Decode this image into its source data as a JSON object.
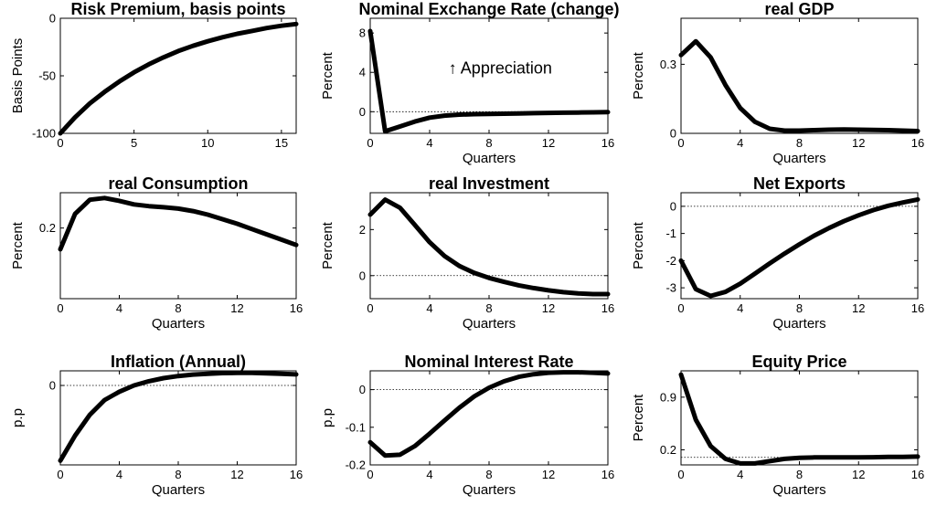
{
  "figure": {
    "background": "#ffffff",
    "line_color": "#000000"
  },
  "chart_data": [
    {
      "type": "line",
      "title": "Risk Premium, basis points",
      "xlabel": "",
      "ylabel": "Basis Points",
      "xlim": [
        0,
        16
      ],
      "ylim": [
        -100,
        0
      ],
      "xticks": [
        0,
        5,
        10,
        15
      ],
      "yticks": [
        -100,
        -50,
        0
      ],
      "zero_line": false,
      "annotation": "",
      "x": [
        0,
        1,
        2,
        3,
        4,
        5,
        6,
        7,
        8,
        9,
        10,
        11,
        12,
        13,
        14,
        15,
        16
      ],
      "y": [
        -100,
        -86,
        -74,
        -64,
        -55,
        -47,
        -40,
        -34,
        -28.5,
        -24,
        -20,
        -16.5,
        -13.5,
        -11,
        -8.5,
        -6.5,
        -5
      ]
    },
    {
      "type": "line",
      "title": "Nominal Exchange Rate (change)",
      "xlabel": "Quarters",
      "ylabel": "Percent",
      "xlim": [
        0,
        16
      ],
      "ylim": [
        -2.2,
        9.5
      ],
      "xticks": [
        0,
        4,
        8,
        12,
        16
      ],
      "yticks": [
        0,
        4,
        8
      ],
      "zero_line": true,
      "annotation": "↑ Appreciation",
      "x": [
        0,
        1,
        2,
        3,
        4,
        5,
        6,
        7,
        8,
        9,
        10,
        11,
        12,
        13,
        14,
        15,
        16
      ],
      "y": [
        8.2,
        -2.0,
        -1.5,
        -1.0,
        -0.6,
        -0.4,
        -0.3,
        -0.25,
        -0.22,
        -0.2,
        -0.18,
        -0.15,
        -0.12,
        -0.1,
        -0.08,
        -0.06,
        -0.05
      ]
    },
    {
      "type": "line",
      "title": "real GDP",
      "xlabel": "Quarters",
      "ylabel": "Percent",
      "xlim": [
        0,
        16
      ],
      "ylim": [
        0,
        0.5
      ],
      "xticks": [
        0,
        4,
        8,
        12,
        16
      ],
      "yticks": [
        0,
        0.3
      ],
      "zero_line": false,
      "annotation": "",
      "x": [
        0,
        1,
        2,
        3,
        4,
        5,
        6,
        7,
        8,
        9,
        10,
        11,
        12,
        13,
        14,
        15,
        16
      ],
      "y": [
        0.34,
        0.4,
        0.33,
        0.21,
        0.11,
        0.05,
        0.02,
        0.012,
        0.012,
        0.014,
        0.016,
        0.017,
        0.016,
        0.015,
        0.014,
        0.012,
        0.01
      ]
    },
    {
      "type": "line",
      "title": "real Consumption",
      "xlabel": "Quarters",
      "ylabel": "Percent",
      "xlim": [
        0,
        16
      ],
      "ylim": [
        0,
        0.3
      ],
      "xticks": [
        0,
        4,
        8,
        12,
        16
      ],
      "yticks": [
        0.2
      ],
      "zero_line": false,
      "annotation": "",
      "x": [
        0,
        1,
        2,
        3,
        4,
        5,
        6,
        7,
        8,
        9,
        10,
        11,
        12,
        13,
        14,
        15,
        16
      ],
      "y": [
        0.14,
        0.24,
        0.28,
        0.285,
        0.277,
        0.267,
        0.262,
        0.259,
        0.255,
        0.248,
        0.238,
        0.225,
        0.212,
        0.197,
        0.182,
        0.167,
        0.152
      ]
    },
    {
      "type": "line",
      "title": "real Investment",
      "xlabel": "Quarters",
      "ylabel": "Percent",
      "xlim": [
        0,
        16
      ],
      "ylim": [
        -1.0,
        3.6
      ],
      "xticks": [
        0,
        4,
        8,
        12,
        16
      ],
      "yticks": [
        0,
        2
      ],
      "zero_line": true,
      "annotation": "",
      "x": [
        0,
        1,
        2,
        3,
        4,
        5,
        6,
        7,
        8,
        9,
        10,
        11,
        12,
        13,
        14,
        15,
        16
      ],
      "y": [
        2.65,
        3.3,
        2.95,
        2.2,
        1.45,
        0.85,
        0.42,
        0.12,
        -0.1,
        -0.27,
        -0.42,
        -0.54,
        -0.64,
        -0.72,
        -0.77,
        -0.8,
        -0.8
      ]
    },
    {
      "type": "line",
      "title": "Net Exports",
      "xlabel": "Quarters",
      "ylabel": "Percent",
      "xlim": [
        0,
        16
      ],
      "ylim": [
        -3.4,
        0.5
      ],
      "xticks": [
        0,
        4,
        8,
        12,
        16
      ],
      "yticks": [
        -3,
        -2,
        -1,
        0
      ],
      "zero_line": true,
      "annotation": "",
      "x": [
        0,
        1,
        2,
        3,
        4,
        5,
        6,
        7,
        8,
        9,
        10,
        11,
        12,
        13,
        14,
        15,
        16
      ],
      "y": [
        -2.0,
        -3.05,
        -3.3,
        -3.15,
        -2.85,
        -2.48,
        -2.1,
        -1.74,
        -1.4,
        -1.08,
        -0.8,
        -0.55,
        -0.33,
        -0.14,
        0.02,
        0.14,
        0.25
      ]
    },
    {
      "type": "line",
      "title": "Inflation (Annual)",
      "xlabel": "Quarters",
      "ylabel": "p.p",
      "xlim": [
        0,
        16
      ],
      "ylim": [
        -0.38,
        0.07
      ],
      "xticks": [
        0,
        4,
        8,
        12,
        16
      ],
      "yticks": [
        0
      ],
      "zero_line": true,
      "annotation": "",
      "x": [
        0,
        1,
        2,
        3,
        4,
        5,
        6,
        7,
        8,
        9,
        10,
        11,
        12,
        13,
        14,
        15,
        16
      ],
      "y": [
        -0.36,
        -0.24,
        -0.14,
        -0.07,
        -0.03,
        0.0,
        0.02,
        0.035,
        0.045,
        0.052,
        0.056,
        0.059,
        0.06,
        0.06,
        0.058,
        0.056,
        0.053
      ]
    },
    {
      "type": "line",
      "title": "Nominal Interest Rate",
      "xlabel": "Quarters",
      "ylabel": "p.p",
      "xlim": [
        0,
        16
      ],
      "ylim": [
        -0.2,
        0.05
      ],
      "xticks": [
        0,
        4,
        8,
        12,
        16
      ],
      "yticks": [
        -0.2,
        -0.1,
        0
      ],
      "zero_line": true,
      "annotation": "",
      "x": [
        0,
        1,
        2,
        3,
        4,
        5,
        6,
        7,
        8,
        9,
        10,
        11,
        12,
        13,
        14,
        15,
        16
      ],
      "y": [
        -0.14,
        -0.175,
        -0.173,
        -0.15,
        -0.117,
        -0.082,
        -0.048,
        -0.018,
        0.005,
        0.022,
        0.034,
        0.041,
        0.045,
        0.046,
        0.046,
        0.045,
        0.043
      ]
    },
    {
      "type": "line",
      "title": "Equity Price",
      "xlabel": "Quarters",
      "ylabel": "Percent",
      "xlim": [
        0,
        16
      ],
      "ylim": [
        0,
        1.25
      ],
      "xticks": [
        0,
        4,
        8,
        12,
        16
      ],
      "yticks": [
        0.2,
        0.9
      ],
      "zero_line": true,
      "zero_line_value": 0.1,
      "annotation": "",
      "x": [
        0,
        1,
        2,
        3,
        4,
        5,
        6,
        7,
        8,
        9,
        10,
        11,
        12,
        13,
        14,
        15,
        16
      ],
      "y": [
        1.2,
        0.6,
        0.25,
        0.08,
        0.02,
        0.02,
        0.05,
        0.08,
        0.095,
        0.1,
        0.1,
        0.1,
        0.1,
        0.102,
        0.105,
        0.107,
        0.11
      ]
    }
  ]
}
